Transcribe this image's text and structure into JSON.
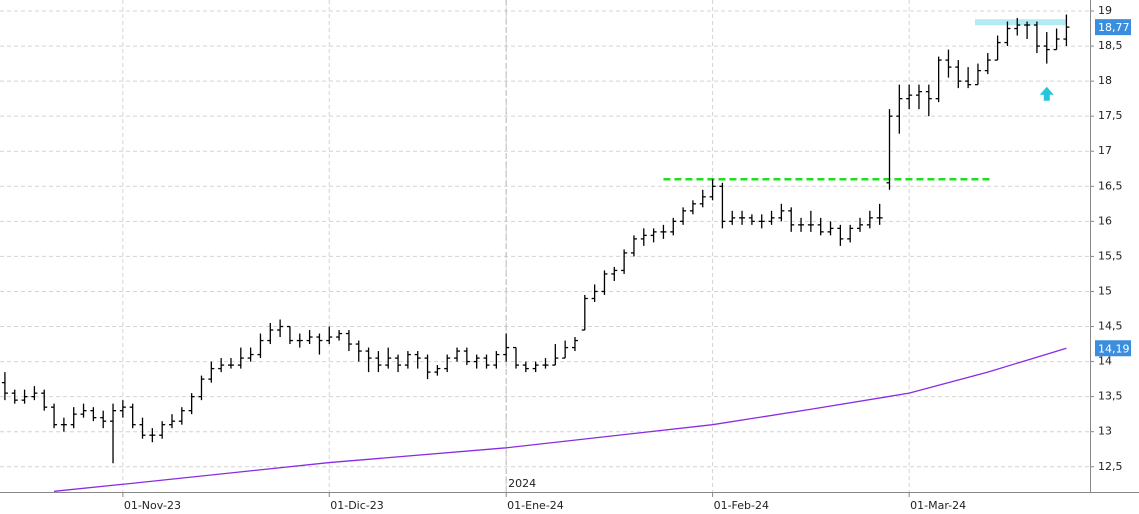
{
  "chart_data": {
    "type": "ohlc",
    "xlim": [
      -0.5,
      110.4
    ],
    "ylim": [
      12.14,
      19.157
    ],
    "grid": true,
    "xticks": [
      {
        "value": 12,
        "label": "01-Nov-23"
      },
      {
        "value": 33,
        "label": "01-Dic-23"
      },
      {
        "value": 51,
        "label": "01-Ene-24"
      },
      {
        "value": 72,
        "label": "01-Feb-24"
      },
      {
        "value": 92,
        "label": "01-Mar-24"
      }
    ],
    "year_marker": {
      "value": 51,
      "label": "2024"
    },
    "yticks": [
      {
        "value": 12.5,
        "label": "12,5"
      },
      13,
      {
        "value": 13.5,
        "label": "13,5"
      },
      14,
      {
        "value": 14.5,
        "label": "14,5"
      },
      15,
      {
        "value": 15.5,
        "label": "15,5"
      },
      16,
      {
        "value": 16.5,
        "label": "16,5"
      },
      17,
      {
        "value": 17.5,
        "label": "17,5"
      },
      18,
      {
        "value": 18.5,
        "label": "18,5"
      },
      19
    ],
    "series": [
      {
        "type": "ohlc",
        "color": "#000000",
        "last_label": "18,77",
        "label_color": "#3b8ede",
        "values": [
          [
            13.7,
            13.85,
            13.45,
            13.55
          ],
          [
            13.55,
            13.6,
            13.4,
            13.45
          ],
          [
            13.45,
            13.6,
            13.4,
            13.5
          ],
          [
            13.5,
            13.65,
            13.45,
            13.55
          ],
          [
            13.55,
            13.6,
            13.3,
            13.35
          ],
          [
            13.35,
            13.4,
            13.05,
            13.1
          ],
          [
            13.1,
            13.2,
            13.0,
            13.1
          ],
          [
            13.1,
            13.35,
            13.05,
            13.25
          ],
          [
            13.25,
            13.4,
            13.2,
            13.3
          ],
          [
            13.3,
            13.35,
            13.15,
            13.2
          ],
          [
            13.2,
            13.3,
            13.05,
            13.15
          ],
          [
            13.15,
            13.4,
            12.55,
            13.3
          ],
          [
            13.3,
            13.45,
            13.2,
            13.35
          ],
          [
            13.35,
            13.4,
            13.05,
            13.1
          ],
          [
            13.1,
            13.2,
            12.9,
            12.95
          ],
          [
            12.95,
            13.05,
            12.85,
            12.95
          ],
          [
            12.95,
            13.15,
            12.9,
            13.1
          ],
          [
            13.1,
            13.25,
            13.05,
            13.15
          ],
          [
            13.15,
            13.35,
            13.1,
            13.3
          ],
          [
            13.3,
            13.55,
            13.25,
            13.5
          ],
          [
            13.5,
            13.8,
            13.45,
            13.75
          ],
          [
            13.75,
            14.0,
            13.7,
            13.9
          ],
          [
            13.9,
            14.05,
            13.85,
            13.95
          ],
          [
            13.95,
            14.05,
            13.9,
            13.95
          ],
          [
            13.95,
            14.2,
            13.9,
            14.05
          ],
          [
            14.05,
            14.2,
            14.0,
            14.1
          ],
          [
            14.1,
            14.4,
            14.05,
            14.3
          ],
          [
            14.3,
            14.55,
            14.25,
            14.45
          ],
          [
            14.45,
            14.6,
            14.35,
            14.5
          ],
          [
            14.5,
            14.5,
            14.25,
            14.3
          ],
          [
            14.3,
            14.4,
            14.2,
            14.3
          ],
          [
            14.3,
            14.45,
            14.25,
            14.35
          ],
          [
            14.35,
            14.4,
            14.1,
            14.3
          ],
          [
            14.3,
            14.5,
            14.25,
            14.35
          ],
          [
            14.35,
            14.45,
            14.3,
            14.4
          ],
          [
            14.4,
            14.45,
            14.15,
            14.25
          ],
          [
            14.25,
            14.3,
            14.0,
            14.15
          ],
          [
            14.15,
            14.2,
            13.85,
            14.05
          ],
          [
            14.05,
            14.15,
            13.85,
            13.95
          ],
          [
            13.95,
            14.2,
            13.9,
            14.05
          ],
          [
            14.05,
            14.1,
            13.85,
            13.95
          ],
          [
            13.95,
            14.15,
            13.9,
            14.1
          ],
          [
            14.1,
            14.15,
            13.9,
            14.05
          ],
          [
            14.05,
            14.1,
            13.75,
            13.85
          ],
          [
            13.85,
            13.95,
            13.8,
            13.9
          ],
          [
            13.9,
            14.1,
            13.85,
            14.05
          ],
          [
            14.05,
            14.2,
            14.0,
            14.15
          ],
          [
            14.15,
            14.2,
            13.95,
            14.0
          ],
          [
            14.0,
            14.1,
            13.9,
            14.05
          ],
          [
            14.05,
            14.1,
            13.9,
            13.95
          ],
          [
            13.95,
            14.15,
            13.9,
            14.1
          ],
          [
            14.1,
            14.4,
            14.0,
            14.2
          ],
          [
            14.2,
            14.2,
            13.9,
            13.95
          ],
          [
            13.95,
            14.0,
            13.85,
            13.9
          ],
          [
            13.9,
            14.0,
            13.85,
            13.95
          ],
          [
            13.95,
            14.05,
            13.9,
            13.95
          ],
          [
            13.95,
            14.25,
            13.95,
            14.05
          ],
          [
            14.05,
            14.3,
            14.05,
            14.2
          ],
          [
            14.2,
            14.35,
            14.15,
            14.3
          ],
          [
            14.45,
            14.95,
            14.45,
            14.9
          ],
          [
            14.9,
            15.1,
            14.85,
            15.0
          ],
          [
            15.0,
            15.3,
            14.95,
            15.25
          ],
          [
            15.25,
            15.35,
            15.15,
            15.3
          ],
          [
            15.3,
            15.6,
            15.25,
            15.55
          ],
          [
            15.55,
            15.8,
            15.5,
            15.75
          ],
          [
            15.75,
            15.9,
            15.65,
            15.8
          ],
          [
            15.8,
            15.9,
            15.7,
            15.85
          ],
          [
            15.85,
            15.95,
            15.75,
            15.85
          ],
          [
            15.85,
            16.05,
            15.8,
            16.0
          ],
          [
            16.0,
            16.2,
            15.95,
            16.15
          ],
          [
            16.15,
            16.3,
            16.1,
            16.25
          ],
          [
            16.25,
            16.45,
            16.2,
            16.35
          ],
          [
            16.35,
            16.6,
            16.3,
            16.5
          ],
          [
            16.5,
            16.55,
            15.9,
            16.0
          ],
          [
            16.0,
            16.15,
            15.95,
            16.05
          ],
          [
            16.05,
            16.15,
            15.95,
            16.05
          ],
          [
            16.05,
            16.1,
            15.95,
            16.0
          ],
          [
            16.0,
            16.1,
            15.9,
            16.0
          ],
          [
            16.0,
            16.15,
            15.95,
            16.05
          ],
          [
            16.05,
            16.25,
            16.0,
            16.15
          ],
          [
            16.15,
            16.2,
            15.85,
            15.95
          ],
          [
            15.95,
            16.05,
            15.85,
            15.95
          ],
          [
            15.95,
            16.15,
            15.85,
            15.95
          ],
          [
            15.95,
            16.05,
            15.8,
            15.85
          ],
          [
            15.85,
            16.0,
            15.8,
            15.9
          ],
          [
            15.9,
            15.95,
            15.65,
            15.75
          ],
          [
            15.75,
            15.95,
            15.7,
            15.9
          ],
          [
            15.9,
            16.05,
            15.85,
            15.95
          ],
          [
            15.95,
            16.15,
            15.9,
            16.05
          ],
          [
            16.05,
            16.25,
            15.95,
            16.05
          ],
          [
            16.55,
            17.6,
            16.45,
            17.5
          ],
          [
            17.5,
            17.95,
            17.25,
            17.75
          ],
          [
            17.75,
            17.95,
            17.6,
            17.8
          ],
          [
            17.8,
            17.95,
            17.6,
            17.85
          ],
          [
            17.85,
            17.95,
            17.5,
            17.75
          ],
          [
            17.75,
            18.35,
            17.7,
            18.3
          ],
          [
            18.3,
            18.45,
            18.05,
            18.2
          ],
          [
            18.2,
            18.3,
            17.9,
            18.0
          ],
          [
            18.0,
            18.2,
            17.9,
            17.95
          ],
          [
            17.95,
            18.25,
            17.95,
            18.15
          ],
          [
            18.15,
            18.4,
            18.1,
            18.3
          ],
          [
            18.3,
            18.65,
            18.3,
            18.55
          ],
          [
            18.55,
            18.85,
            18.5,
            18.75
          ],
          [
            18.75,
            18.9,
            18.65,
            18.8
          ],
          [
            18.8,
            18.85,
            18.6,
            18.8
          ],
          [
            18.8,
            18.85,
            18.4,
            18.5
          ],
          [
            18.5,
            18.7,
            18.25,
            18.45
          ],
          [
            18.45,
            18.75,
            18.45,
            18.6
          ],
          [
            18.6,
            18.95,
            18.5,
            18.77
          ]
        ]
      },
      {
        "type": "line",
        "color": "#8a2be2",
        "last_label": "14,19",
        "label_color": "#3b8ede",
        "x": [
          5,
          12,
          33,
          51,
          72,
          82,
          92,
          100,
          108
        ],
        "values": [
          12.15,
          12.25,
          12.56,
          12.77,
          13.1,
          13.32,
          13.55,
          13.85,
          14.19
        ]
      }
    ],
    "annotations": [
      {
        "type": "hline",
        "value": 16.6,
        "x": [
          67,
          100.5
        ],
        "color": "#22dd22"
      },
      {
        "type": "band",
        "value": 18.84,
        "x": [
          98.7,
          108
        ],
        "color": "#b2ebf2"
      },
      {
        "type": "arrow",
        "value": 17.72,
        "x": 106,
        "color": "#26c6da"
      }
    ]
  }
}
